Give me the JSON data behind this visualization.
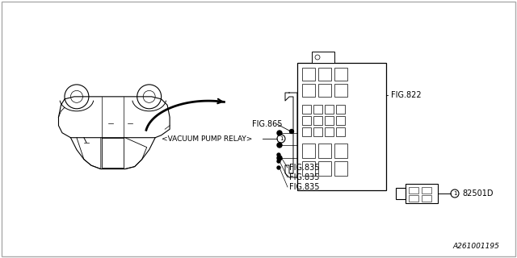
{
  "bg_color": "#ffffff",
  "border_color": "#000000",
  "fig_number": "A261001195",
  "labels": {
    "fig822": "FIG.822",
    "fig865": "FIG.865",
    "vacuum_pump_relay": "<VACUUM PUMP RELAY>",
    "fig835_1": "FIG.835",
    "fig835_2": "FIG.835",
    "fig835_3": "FIG.835",
    "part_number": "82501D"
  },
  "annotation_color": "#000000",
  "line_color": "#000000",
  "font_size": 7,
  "title_font_size": 8
}
